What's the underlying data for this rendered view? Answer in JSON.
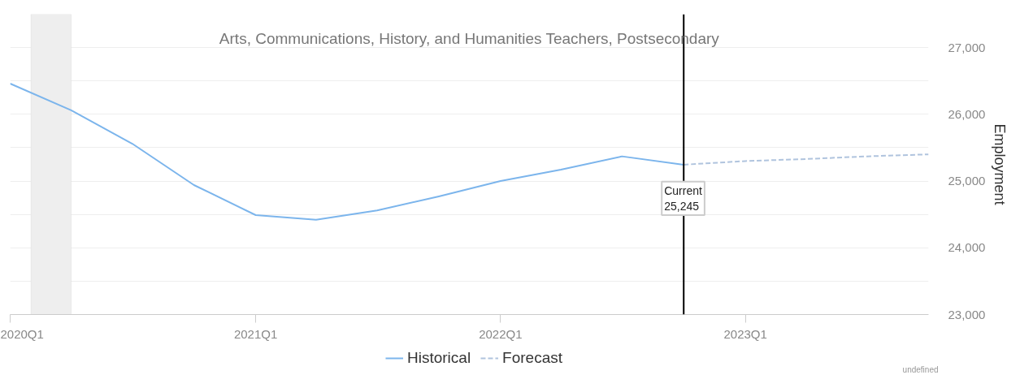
{
  "chart_data": {
    "type": "line",
    "title": "Arts, Communications, History, and Humanities Teachers, Postsecondary",
    "ylabel": "Employment",
    "series": [
      {
        "name": "Historical",
        "color": "#7cb5ec",
        "line_style": "solid",
        "x": [
          "2020-01",
          "2020-04",
          "2020-07",
          "2020-10",
          "2021-01",
          "2021-04",
          "2021-07",
          "2021-10",
          "2022-01",
          "2022-04",
          "2022-07",
          "2022-10"
        ],
        "values": [
          26460,
          26060,
          25560,
          24940,
          24490,
          24420,
          24560,
          24770,
          25000,
          25170,
          25370,
          25245
        ]
      },
      {
        "name": "Forecast",
        "color": "#b0c4de",
        "line_style": "dashed",
        "x": [
          "2022-10",
          "2023-01",
          "2023-04",
          "2023-07",
          "2023-10"
        ],
        "values": [
          25245,
          25300,
          25330,
          25370,
          25400
        ]
      }
    ],
    "xlim": [
      "2020-01",
      "2023-10"
    ],
    "xticks": [
      {
        "value": "2020-01",
        "label": "2020Q1"
      },
      {
        "value": "2021-01",
        "label": "2021Q1"
      },
      {
        "value": "2022-01",
        "label": "2022Q1"
      },
      {
        "value": "2023-01",
        "label": "2023Q1"
      }
    ],
    "ylim": [
      23000,
      27500
    ],
    "yticks": [
      {
        "value": 23000,
        "label": "23,000"
      },
      {
        "value": 23500,
        "label": null
      },
      {
        "value": 24000,
        "label": "24,000"
      },
      {
        "value": 24500,
        "label": null
      },
      {
        "value": 25000,
        "label": "25,000"
      },
      {
        "value": 25500,
        "label": null
      },
      {
        "value": 26000,
        "label": "26,000"
      },
      {
        "value": 26500,
        "label": null
      },
      {
        "value": 27000,
        "label": "27,000"
      }
    ],
    "bands": [
      {
        "axis": "x",
        "from": "2020-02",
        "to": "2020-04",
        "color": "#eeeeee"
      }
    ],
    "ref_lines": [
      {
        "axis": "x",
        "value": "2022-10",
        "color": "#000000"
      }
    ],
    "annotations": [
      {
        "text": "Current\n25,245",
        "x": "2022-10",
        "y": 25245
      },
      "undefined"
    ],
    "grid": "y",
    "legend": "bottom",
    "marker": "none"
  }
}
